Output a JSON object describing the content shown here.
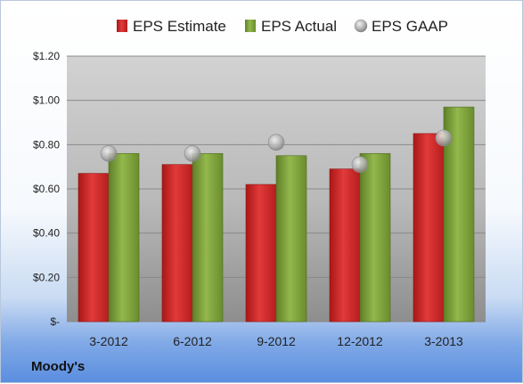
{
  "company": "Moody's",
  "colors": {
    "estimate": "#d42a2a",
    "actual": "#7fa33a",
    "gaap": "#a8a8a8"
  },
  "chart_data": {
    "type": "bar",
    "title": "",
    "xlabel": "",
    "ylabel": "",
    "categories": [
      "3-2012",
      "6-2012",
      "9-2012",
      "12-2012",
      "3-2013"
    ],
    "series": [
      {
        "name": "EPS Estimate",
        "kind": "bar",
        "values": [
          0.67,
          0.71,
          0.62,
          0.69,
          0.85
        ]
      },
      {
        "name": "EPS Actual",
        "kind": "bar",
        "values": [
          0.76,
          0.76,
          0.75,
          0.76,
          0.97
        ]
      },
      {
        "name": "EPS GAAP",
        "kind": "marker",
        "values": [
          0.76,
          0.76,
          0.81,
          0.71,
          0.83
        ]
      }
    ],
    "ylim": [
      0,
      1.2
    ],
    "yticks": [
      0,
      0.2,
      0.4,
      0.6,
      0.8,
      1.0,
      1.2
    ],
    "ytick_labels": [
      "$-",
      "$0.20",
      "$0.40",
      "$0.60",
      "$0.80",
      "$1.00",
      "$1.20"
    ],
    "grid": true,
    "legend_position": "top"
  }
}
